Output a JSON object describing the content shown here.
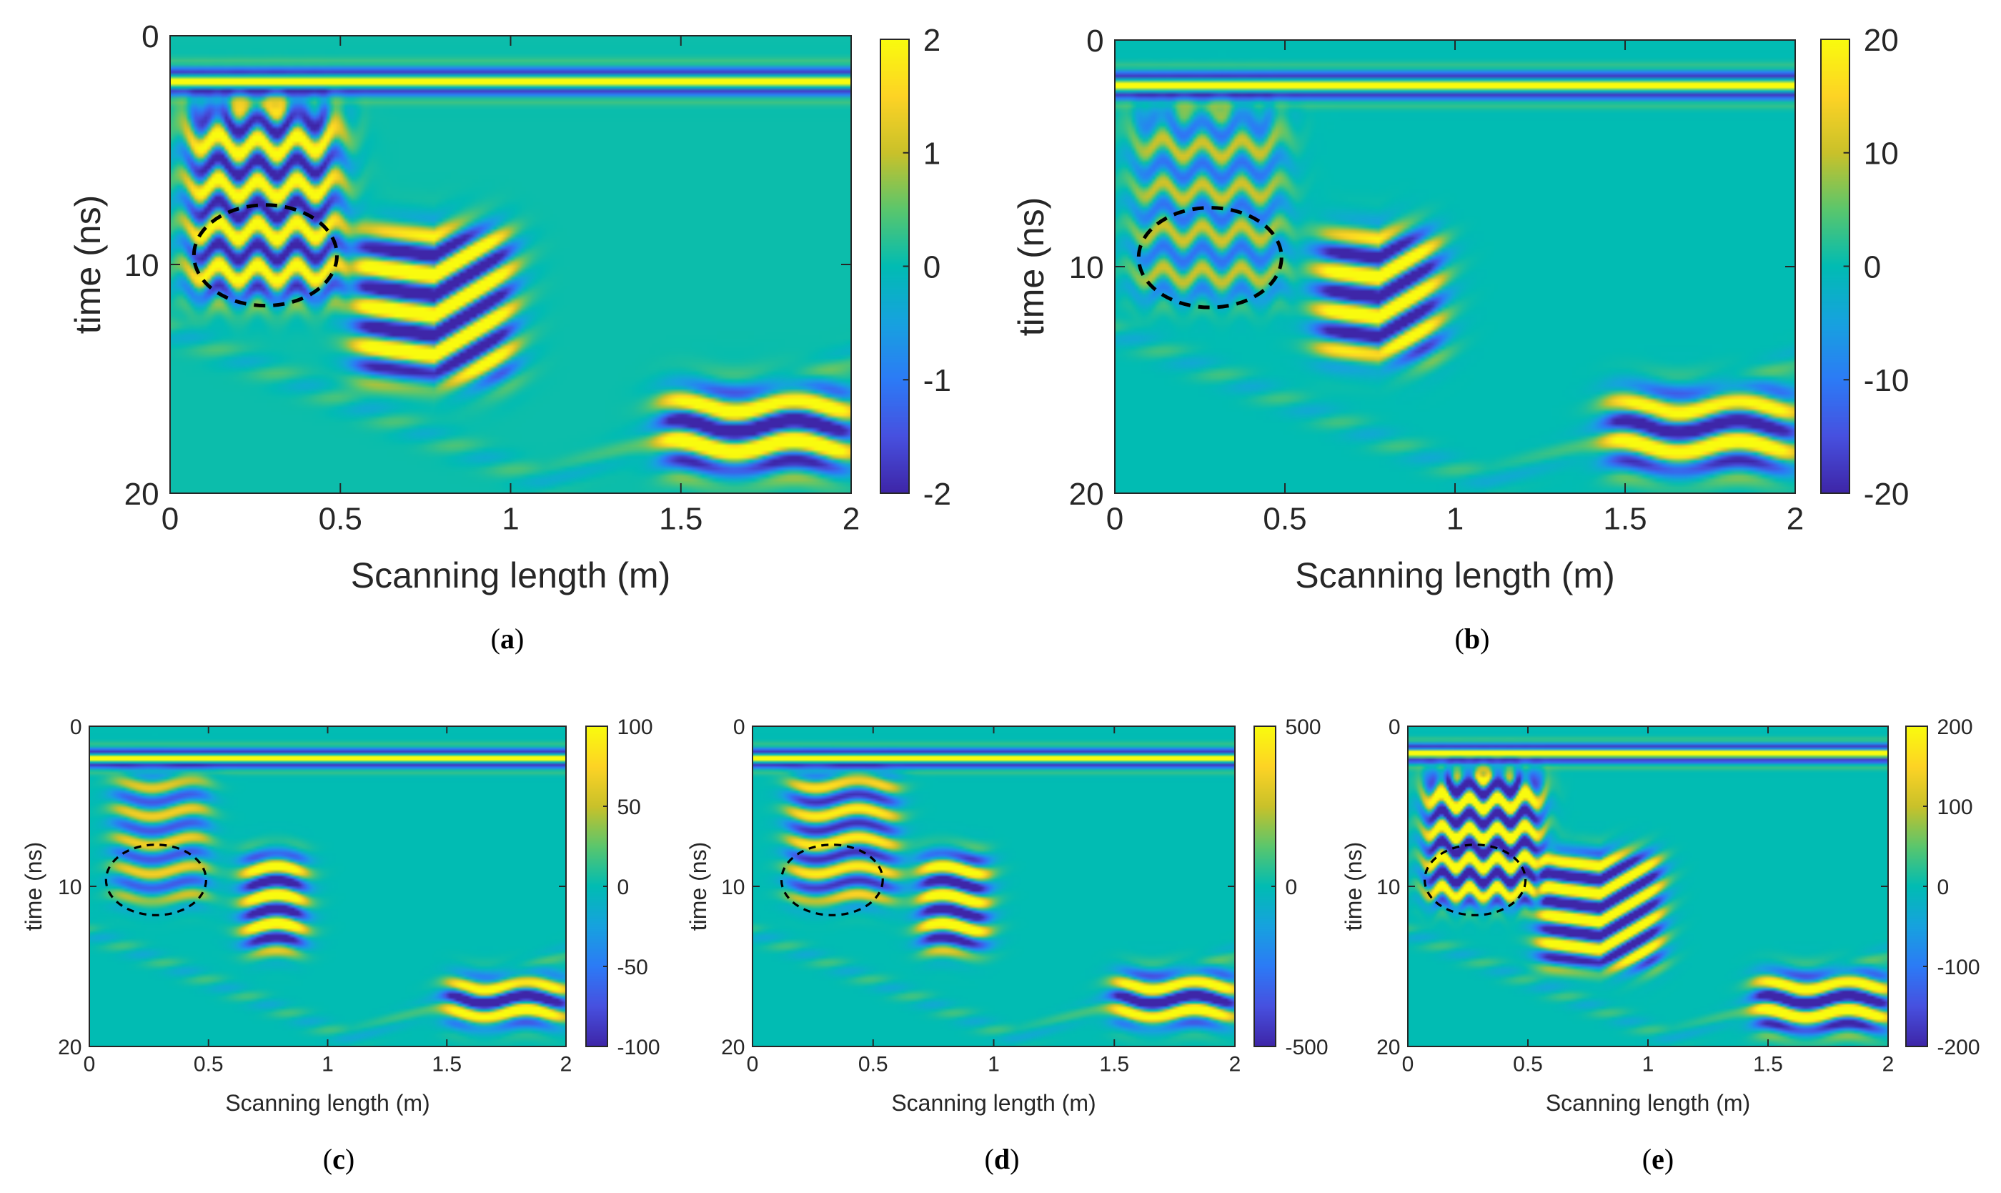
{
  "figure": {
    "colormap": [
      "#3e26a8",
      "#4751e0",
      "#2c7bf6",
      "#17a2df",
      "#01bcb3",
      "#5ac66d",
      "#c9c12a",
      "#fdd325",
      "#f9fb0e"
    ],
    "annotation_color": "#000000"
  },
  "chart_data": [
    {
      "id": "a",
      "type": "heatmap",
      "caption_letter": "a",
      "xlabel": "Scanning length (m)",
      "ylabel": "time (ns)",
      "xlim": [
        0,
        2
      ],
      "ylim": [
        0,
        20
      ],
      "y_direction": "reversed",
      "xticks": [
        "0",
        "0.5",
        "1",
        "1.5",
        "2"
      ],
      "yticks": [
        "0",
        "10",
        "20"
      ],
      "colorbar": {
        "range": [
          -2,
          2
        ],
        "ticks": [
          "2",
          "1",
          "0",
          "-1",
          "-2"
        ]
      },
      "background_level": 0.03,
      "direct_wave_ns": 2.0,
      "direct_wave_amp": 1.0,
      "features": [
        {
          "name": "hyperbola-cluster",
          "x_range": [
            0.05,
            0.5
          ],
          "t_range": [
            3,
            11.5
          ],
          "amp": 0.75,
          "mode": "hyperbola"
        },
        {
          "name": "dipping-reflector",
          "x_range": [
            0.55,
            1.0
          ],
          "t_range": [
            8.5,
            15
          ],
          "amp": 0.95,
          "mode": "steep"
        },
        {
          "name": "deep-reflector",
          "x_range": [
            1.45,
            2.0
          ],
          "t_range": [
            15.5,
            19
          ],
          "amp": 0.95,
          "mode": "flat"
        }
      ],
      "ellipse": {
        "cx": 0.28,
        "cy": 9.6,
        "rx": 0.21,
        "ry": 2.2
      }
    },
    {
      "id": "b",
      "type": "heatmap",
      "caption_letter": "b",
      "xlabel": "Scanning length (m)",
      "ylabel": "time (ns)",
      "xlim": [
        0,
        2
      ],
      "ylim": [
        0,
        20
      ],
      "y_direction": "reversed",
      "xticks": [
        "0",
        "0.5",
        "1",
        "1.5",
        "2"
      ],
      "yticks": [
        "0",
        "10",
        "20"
      ],
      "colorbar": {
        "range": [
          -20,
          20
        ],
        "ticks": [
          "20",
          "10",
          "0",
          "-10",
          "-20"
        ]
      },
      "background_level": 0.0,
      "direct_wave_ns": 2.0,
      "direct_wave_amp": 1.0,
      "features": [
        {
          "name": "hyperbola-cluster",
          "x_range": [
            0.05,
            0.5
          ],
          "t_range": [
            3,
            11.5
          ],
          "amp": 0.35,
          "mode": "hyperbola"
        },
        {
          "name": "dipping-reflector",
          "x_range": [
            0.6,
            0.95
          ],
          "t_range": [
            8.5,
            14
          ],
          "amp": 0.9,
          "mode": "steep"
        },
        {
          "name": "deep-reflector",
          "x_range": [
            1.45,
            2.0
          ],
          "t_range": [
            15.5,
            19
          ],
          "amp": 0.85,
          "mode": "flat"
        }
      ],
      "ellipse": {
        "cx": 0.28,
        "cy": 9.6,
        "rx": 0.21,
        "ry": 2.2
      }
    },
    {
      "id": "c",
      "type": "heatmap",
      "caption_letter": "c",
      "xlabel": "Scanning length (m)",
      "ylabel": "time (ns)",
      "xlim": [
        0,
        2
      ],
      "ylim": [
        0,
        20
      ],
      "y_direction": "reversed",
      "xticks": [
        "0",
        "0.5",
        "1",
        "1.5",
        "2"
      ],
      "yticks": [
        "0",
        "10",
        "20"
      ],
      "colorbar": {
        "range": [
          -100,
          100
        ],
        "ticks": [
          "100",
          "50",
          "0",
          "-50",
          "-100"
        ]
      },
      "background_level": 0.0,
      "direct_wave_ns": 2.0,
      "direct_wave_amp": 1.0,
      "features": [
        {
          "name": "hyperbola-cluster",
          "x_range": [
            0.1,
            0.5
          ],
          "t_range": [
            3,
            11
          ],
          "amp": 0.45,
          "mode": "flat"
        },
        {
          "name": "dipping-reflector",
          "x_range": [
            0.65,
            0.9
          ],
          "t_range": [
            8,
            14
          ],
          "amp": 0.9,
          "mode": "flat"
        },
        {
          "name": "deep-reflector",
          "x_range": [
            1.5,
            2.0
          ],
          "t_range": [
            15.8,
            18.5
          ],
          "amp": 0.95,
          "mode": "flat"
        }
      ],
      "ellipse": {
        "cx": 0.28,
        "cy": 9.6,
        "rx": 0.21,
        "ry": 2.2
      }
    },
    {
      "id": "d",
      "type": "heatmap",
      "caption_letter": "d",
      "xlabel": "Scanning length (m)",
      "ylabel": "time (ns)",
      "xlim": [
        0,
        2
      ],
      "ylim": [
        0,
        20
      ],
      "y_direction": "reversed",
      "xticks": [
        "0",
        "0.5",
        "1",
        "1.5",
        "2"
      ],
      "yticks": [
        "0",
        "10",
        "20"
      ],
      "colorbar": {
        "range": [
          -500,
          500
        ],
        "ticks": [
          "500",
          "0",
          "-500"
        ]
      },
      "background_level": 0.0,
      "direct_wave_ns": 2.0,
      "direct_wave_amp": 1.0,
      "features": [
        {
          "name": "hyperbola-cluster",
          "x_range": [
            0.15,
            0.6
          ],
          "t_range": [
            3,
            11
          ],
          "amp": 0.6,
          "mode": "flat"
        },
        {
          "name": "dipping-reflector",
          "x_range": [
            0.7,
            0.97
          ],
          "t_range": [
            8,
            14
          ],
          "amp": 0.9,
          "mode": "flat"
        },
        {
          "name": "deep-reflector",
          "x_range": [
            1.5,
            2.0
          ],
          "t_range": [
            15.5,
            18.5
          ],
          "amp": 0.95,
          "mode": "flat"
        }
      ],
      "ellipse": {
        "cx": 0.33,
        "cy": 9.6,
        "rx": 0.21,
        "ry": 2.2
      }
    },
    {
      "id": "e",
      "type": "heatmap",
      "caption_letter": "e",
      "xlabel": "Scanning length (m)",
      "ylabel": "time (ns)",
      "xlim": [
        0,
        2
      ],
      "ylim": [
        0,
        20
      ],
      "y_direction": "reversed",
      "xticks": [
        "0",
        "0.5",
        "1",
        "1.5",
        "2"
      ],
      "yticks": [
        "0",
        "10",
        "20"
      ],
      "colorbar": {
        "range": [
          -200,
          200
        ],
        "ticks": [
          "200",
          "100",
          "0",
          "-100",
          "-200"
        ]
      },
      "background_level": 0.0,
      "direct_wave_ns": 1.7,
      "direct_wave_amp": 1.0,
      "features": [
        {
          "name": "hyperbola-cluster",
          "x_range": [
            0.08,
            0.55
          ],
          "t_range": [
            3,
            11
          ],
          "amp": 0.95,
          "mode": "hyperbola"
        },
        {
          "name": "dipping-reflector",
          "x_range": [
            0.55,
            1.05
          ],
          "t_range": [
            8,
            15
          ],
          "amp": 0.95,
          "mode": "steep"
        },
        {
          "name": "deep-reflector",
          "x_range": [
            1.45,
            2.0
          ],
          "t_range": [
            15.5,
            19
          ],
          "amp": 0.95,
          "mode": "flat"
        }
      ],
      "ellipse": {
        "cx": 0.28,
        "cy": 9.6,
        "rx": 0.21,
        "ry": 2.2
      }
    }
  ]
}
